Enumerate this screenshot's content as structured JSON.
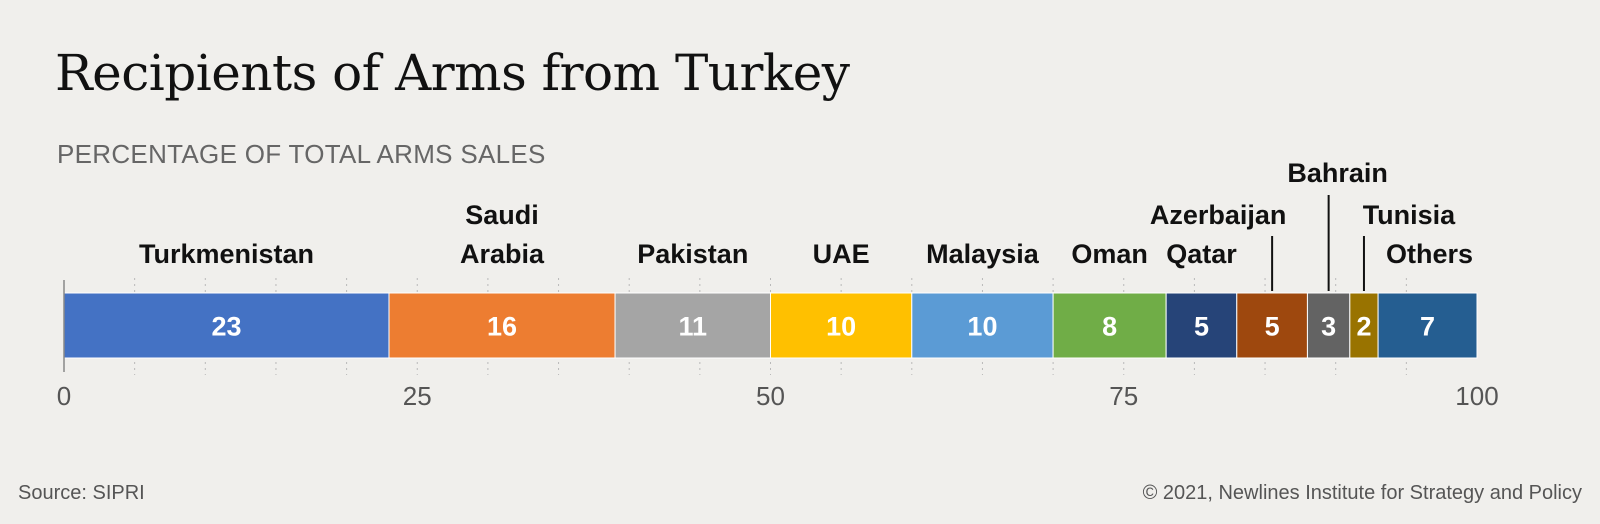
{
  "title": "Recipients of Arms from Turkey",
  "subtitle": "PERCENTAGE OF TOTAL ARMS SALES",
  "source": "Source: SIPRI",
  "credit": "© 2021, Newlines Institute for Strategy and Policy",
  "chart_data": {
    "type": "bar",
    "stacked": true,
    "orientation": "horizontal",
    "xlim": [
      0,
      100
    ],
    "x_ticks": [
      0,
      25,
      50,
      75,
      100
    ],
    "x_tick_labels": [
      "0",
      "25",
      "50",
      "75",
      "100"
    ],
    "minor_gridlines": true,
    "segments": [
      {
        "name": "Turkmenistan",
        "label_lines": [
          "Turkmenistan"
        ],
        "value": 23,
        "color": "#4472c4",
        "label_color": "#ffffff"
      },
      {
        "name": "Saudi Arabia",
        "label_lines": [
          "Saudi",
          "Arabia"
        ],
        "value": 16,
        "color": "#ed7d31",
        "label_color": "#ffffff"
      },
      {
        "name": "Pakistan",
        "label_lines": [
          "Pakistan"
        ],
        "value": 11,
        "color": "#a5a5a5",
        "label_color": "#ffffff"
      },
      {
        "name": "UAE",
        "label_lines": [
          "UAE"
        ],
        "value": 10,
        "color": "#ffc000",
        "label_color": "#ffffff"
      },
      {
        "name": "Malaysia",
        "label_lines": [
          "Malaysia"
        ],
        "value": 10,
        "color": "#5b9bd5",
        "label_color": "#ffffff"
      },
      {
        "name": "Oman",
        "label_lines": [
          "Oman"
        ],
        "value": 8,
        "color": "#70ad47",
        "label_color": "#ffffff"
      },
      {
        "name": "Qatar",
        "label_lines": [
          "Qatar"
        ],
        "value": 5,
        "color": "#264478",
        "label_color": "#ffffff"
      },
      {
        "name": "Azerbaijan",
        "label_lines": [
          "Azerbaijan"
        ],
        "value": 5,
        "color": "#9e480e",
        "label_color": "#ffffff",
        "leader": true
      },
      {
        "name": "Bahrain",
        "label_lines": [
          "Bahrain"
        ],
        "value": 3,
        "color": "#636363",
        "label_color": "#ffffff",
        "leader": true
      },
      {
        "name": "Tunisia",
        "label_lines": [
          "Tunisia"
        ],
        "value": 2,
        "color": "#997300",
        "label_color": "#ffffff",
        "leader": true
      },
      {
        "name": "Others",
        "label_lines": [
          "Others"
        ],
        "value": 7,
        "color": "#255e91",
        "label_color": "#ffffff"
      }
    ]
  }
}
